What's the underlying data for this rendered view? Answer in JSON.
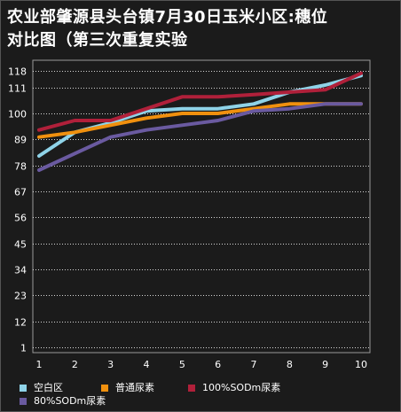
{
  "title_line1": "农业部肇源县头台镇7月30日玉米小区:穗位",
  "title_line2": "对比图（第三次重复实验",
  "chart_data": {
    "type": "line",
    "title": "农业部肇源县头台镇7月30日玉米小区:穗位对比图（第三次重复实验",
    "x": [
      1,
      2,
      3,
      4,
      5,
      6,
      7,
      8,
      9,
      10
    ],
    "x_tick_labels": [
      "1",
      "2",
      "3",
      "4",
      "5",
      "6",
      "7",
      "8",
      "9",
      "10"
    ],
    "y_tick_labels": [
      "1",
      "12",
      "23",
      "34",
      "45",
      "56",
      "67",
      "78",
      "89",
      "100",
      "111",
      "118"
    ],
    "y_ticks": [
      1,
      12,
      23,
      34,
      45,
      56,
      67,
      78,
      89,
      100,
      111,
      118
    ],
    "ylim": [
      1,
      118
    ],
    "grid": true,
    "legend_position": "bottom",
    "series": [
      {
        "name": "空白区",
        "color": "#8fd3e8",
        "values": [
          82,
          92,
          96,
          101,
          102,
          102,
          104,
          109,
          112,
          116
        ]
      },
      {
        "name": "普通尿素",
        "color": "#f0900e",
        "values": [
          90,
          92,
          95,
          98,
          100,
          100,
          102,
          104,
          104,
          104
        ]
      },
      {
        "name": "100%SODm尿素",
        "color": "#b0203a",
        "values": [
          93,
          97,
          97,
          102,
          107,
          107,
          108,
          109,
          110,
          117
        ]
      },
      {
        "name": "80%SODm尿素",
        "color": "#6a5aa0",
        "values": [
          76,
          83,
          90,
          93,
          95,
          97,
          101,
          102,
          104,
          104
        ]
      }
    ]
  }
}
